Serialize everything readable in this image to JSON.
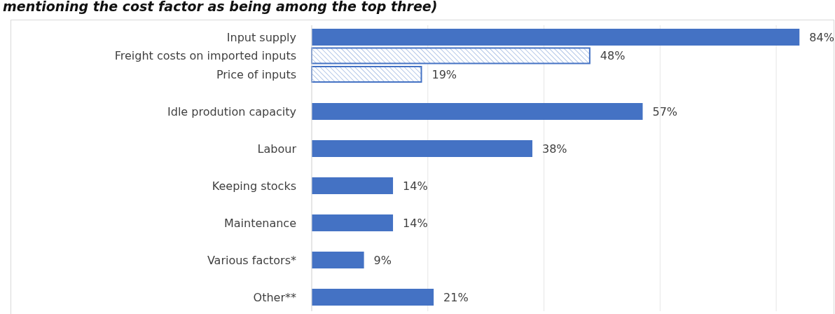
{
  "chart_data": {
    "type": "bar",
    "orientation": "horizontal",
    "title": "mentioning the cost factor as being among the top three)",
    "categories": [
      "Input supply",
      "Freight costs on imported inputs",
      "Price of inputs",
      "Idle prodution capacity",
      "Labour",
      "Keeping stocks",
      "Maintenance",
      "Various factors*",
      "Other**"
    ],
    "series": [
      {
        "color": "#4472c4",
        "values": [
          84,
          null,
          null,
          57,
          38,
          14,
          14,
          9,
          21
        ],
        "value_labels": [
          "84%",
          null,
          null,
          "57%",
          "38%",
          "14%",
          "14%",
          "9%",
          "21%"
        ]
      },
      {
        "color": "#4472c4",
        "values": [
          null,
          48,
          19,
          null,
          null,
          null,
          null,
          null,
          null
        ],
        "value_labels": [
          null,
          "48%",
          "19%",
          null,
          null,
          null,
          null,
          null,
          null
        ]
      }
    ],
    "xlim": [
      0,
      90
    ],
    "xticks": [
      {
        "value": 0,
        "label": null
      },
      {
        "value": 20,
        "label": null
      },
      {
        "value": 40,
        "label": null
      },
      {
        "value": 60,
        "label": null
      },
      {
        "value": 80,
        "label": null
      }
    ],
    "grid": "x",
    "tick_labels": "y"
  }
}
